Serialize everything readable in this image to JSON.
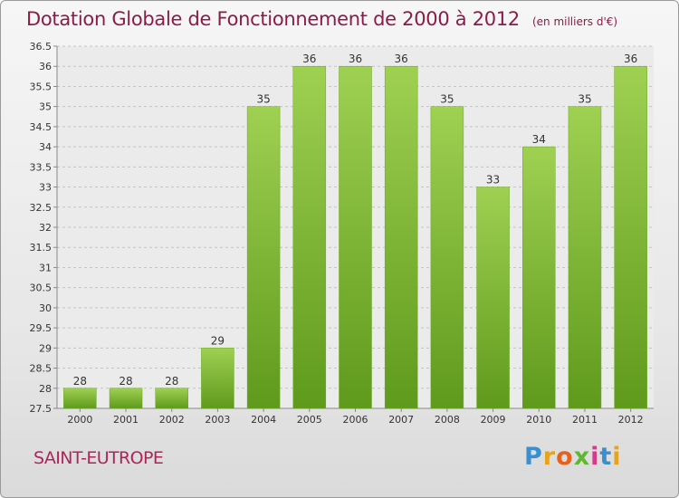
{
  "header": {
    "title": "Dotation Globale de Fonctionnement de 2000 à 2012",
    "subtitle": "(en milliers d'€)"
  },
  "place": "SAINT-EUTROPE",
  "logo": {
    "text": "Proxiti",
    "letters": [
      {
        "ch": "P",
        "color": "#3a8fd0"
      },
      {
        "ch": "r",
        "color": "#e8a21c"
      },
      {
        "ch": "o",
        "color": "#e8601c"
      },
      {
        "ch": "x",
        "color": "#5fb832"
      },
      {
        "ch": "i",
        "color": "#d83a8a"
      },
      {
        "ch": "t",
        "color": "#3a8fd0"
      },
      {
        "ch": "i",
        "color": "#e8a21c"
      }
    ]
  },
  "chart_data": {
    "type": "bar",
    "categories": [
      "2000",
      "2001",
      "2002",
      "2003",
      "2004",
      "2005",
      "2006",
      "2007",
      "2008",
      "2009",
      "2010",
      "2011",
      "2012"
    ],
    "values": [
      28,
      28,
      28,
      29,
      35,
      36,
      36,
      36,
      35,
      33,
      34,
      35,
      36
    ],
    "ylim": [
      27.5,
      36.5
    ],
    "yticks": [
      "27.5",
      "28",
      "28.5",
      "29",
      "29.5",
      "30",
      "30.5",
      "31",
      "31.5",
      "32",
      "32.5",
      "33",
      "33.5",
      "34",
      "34.5",
      "35",
      "35.5",
      "36",
      "36.5"
    ],
    "grid": true,
    "bar_color": "#7ab82e"
  }
}
